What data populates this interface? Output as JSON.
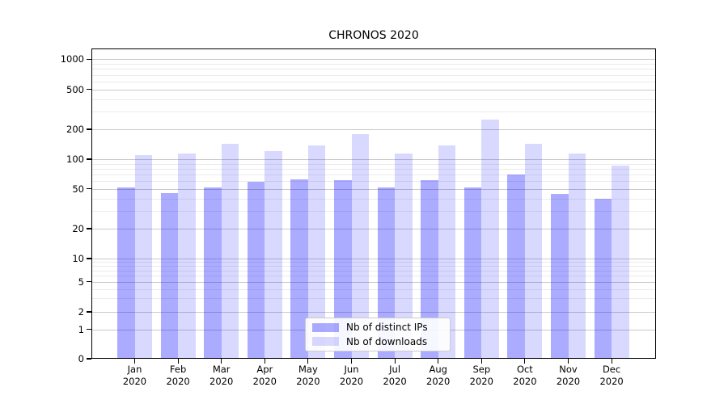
{
  "chart_data": {
    "type": "bar",
    "title": "CHRONOS 2020",
    "categories": [
      "Jan 2020",
      "Feb 2020",
      "Mar 2020",
      "Apr 2020",
      "May 2020",
      "Jun 2020",
      "Jul 2020",
      "Aug 2020",
      "Sep 2020",
      "Oct 2020",
      "Nov 2020",
      "Dec 2020"
    ],
    "series": [
      {
        "name": "Nb of distinct IPs",
        "color": "rgba(0,0,255,0.33)",
        "values": [
          51,
          45,
          51,
          59,
          62,
          61,
          51,
          61,
          51,
          70,
          44,
          40
        ]
      },
      {
        "name": "Nb of downloads",
        "color": "rgba(0,0,255,0.15)",
        "values": [
          109,
          114,
          142,
          121,
          137,
          178,
          115,
          138,
          248,
          142,
          114,
          86
        ]
      }
    ],
    "y_axis": {
      "scale": "symlog",
      "ticks": [
        0,
        1,
        2,
        5,
        10,
        20,
        50,
        100,
        200,
        500,
        1000
      ],
      "minor_ticks": [
        3,
        4,
        6,
        7,
        8,
        9,
        30,
        40,
        60,
        70,
        80,
        90,
        300,
        400,
        600,
        700,
        800,
        900
      ]
    },
    "x_axis": {
      "label_line_2": "2020"
    },
    "legend": {
      "position": "bottom-center"
    },
    "grid": true,
    "ylim": [
      0,
      1270
    ]
  },
  "colors": {
    "background": "#ffffff",
    "axis": "#000000",
    "major_grid": "#c9c9c9",
    "minor_grid": "#ebebeb",
    "text": "#000000"
  }
}
